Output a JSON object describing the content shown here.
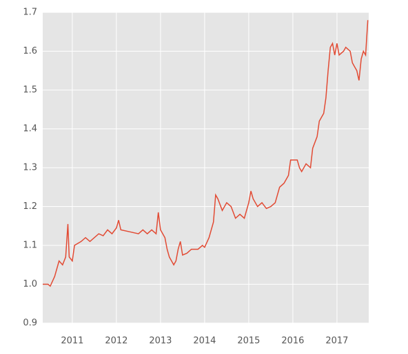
{
  "chart_data": {
    "type": "line",
    "x": [
      2010.33,
      2010.45,
      2010.5,
      2010.6,
      2010.7,
      2010.78,
      2010.85,
      2010.9,
      2010.93,
      2011.0,
      2011.05,
      2011.2,
      2011.3,
      2011.4,
      2011.5,
      2011.6,
      2011.7,
      2011.8,
      2011.9,
      2012.0,
      2012.05,
      2012.1,
      2012.3,
      2012.5,
      2012.6,
      2012.7,
      2012.8,
      2012.9,
      2012.95,
      2013.0,
      2013.1,
      2013.15,
      2013.2,
      2013.3,
      2013.35,
      2013.4,
      2013.45,
      2013.5,
      2013.6,
      2013.7,
      2013.85,
      2013.95,
      2014.0,
      2014.1,
      2014.2,
      2014.25,
      2014.3,
      2014.4,
      2014.5,
      2014.6,
      2014.7,
      2014.8,
      2014.9,
      2015.0,
      2015.05,
      2015.1,
      2015.2,
      2015.3,
      2015.4,
      2015.5,
      2015.6,
      2015.7,
      2015.8,
      2015.9,
      2015.95,
      2016.0,
      2016.1,
      2016.15,
      2016.2,
      2016.3,
      2016.4,
      2016.45,
      2016.55,
      2016.6,
      2016.7,
      2016.75,
      2016.8,
      2016.85,
      2016.9,
      2016.95,
      2017.0,
      2017.05,
      2017.15,
      2017.2,
      2017.3,
      2017.35,
      2017.4,
      2017.45,
      2017.5,
      2017.55,
      2017.6,
      2017.65,
      2017.7
    ],
    "series": [
      {
        "color": "#e24a33",
        "values": [
          1.0,
          1.0,
          0.995,
          1.02,
          1.06,
          1.05,
          1.07,
          1.155,
          1.07,
          1.06,
          1.1,
          1.11,
          1.12,
          1.11,
          1.12,
          1.13,
          1.125,
          1.14,
          1.13,
          1.145,
          1.165,
          1.14,
          1.135,
          1.13,
          1.14,
          1.13,
          1.14,
          1.13,
          1.185,
          1.14,
          1.12,
          1.09,
          1.07,
          1.05,
          1.06,
          1.09,
          1.11,
          1.075,
          1.08,
          1.09,
          1.09,
          1.1,
          1.095,
          1.12,
          1.16,
          1.23,
          1.22,
          1.19,
          1.21,
          1.2,
          1.17,
          1.18,
          1.17,
          1.21,
          1.24,
          1.22,
          1.2,
          1.21,
          1.195,
          1.2,
          1.21,
          1.25,
          1.26,
          1.28,
          1.32,
          1.32,
          1.32,
          1.3,
          1.29,
          1.31,
          1.3,
          1.35,
          1.38,
          1.42,
          1.44,
          1.48,
          1.55,
          1.61,
          1.62,
          1.59,
          1.62,
          1.59,
          1.6,
          1.61,
          1.6,
          1.57,
          1.56,
          1.55,
          1.525,
          1.58,
          1.6,
          1.59,
          1.68
        ]
      }
    ],
    "xlim": [
      2010.33,
      2017.72
    ],
    "xticks": [
      2011,
      2012,
      2013,
      2014,
      2015,
      2016,
      2017
    ],
    "ylim": [
      0.9,
      1.7
    ],
    "yticks": [
      {
        "value": 0.9,
        "label": "0.9"
      },
      {
        "value": 1.0,
        "label": "1.0"
      },
      1.1,
      1.2,
      1.3,
      1.4,
      1.5,
      1.6,
      1.7
    ],
    "grid": true
  }
}
